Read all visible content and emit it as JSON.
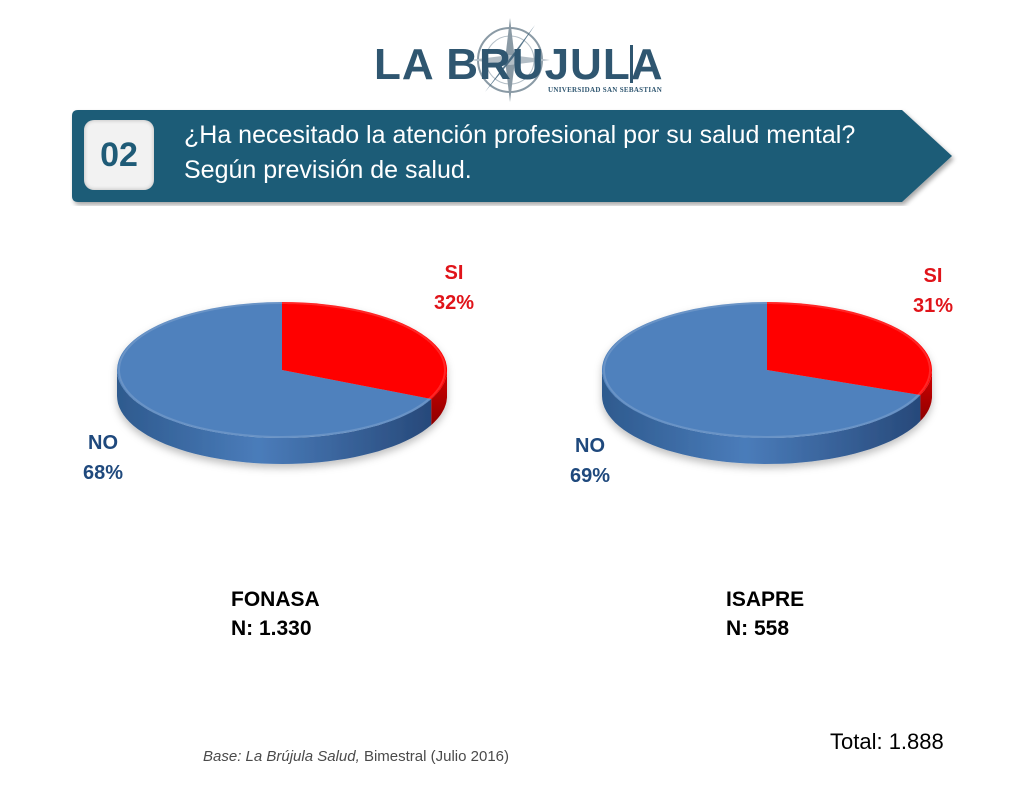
{
  "logo": {
    "name": "LA BRUJULA",
    "subtitle": "UNIVERSIDAD SAN SEBASTIAN"
  },
  "question": {
    "number": "02",
    "text": "¿Ha necesitado la atención profesional por su salud mental? Según previsión de salud."
  },
  "chart_data": [
    {
      "type": "pie",
      "title": "FONASA",
      "n_label": "N: 1.330",
      "categories": [
        "SI",
        "NO"
      ],
      "values": [
        32,
        68
      ],
      "value_labels": [
        "32%",
        "68%"
      ],
      "colors": [
        "#ff0000",
        "#4f81bd"
      ]
    },
    {
      "type": "pie",
      "title": "ISAPRE",
      "n_label": "N: 558",
      "categories": [
        "SI",
        "NO"
      ],
      "values": [
        31,
        69
      ],
      "value_labels": [
        "31%",
        "69%"
      ],
      "colors": [
        "#ff0000",
        "#4f81bd"
      ]
    }
  ],
  "footer": {
    "total": "Total:  1.888",
    "source_italic": "Base: La Brújula Salud,",
    "source_rest": " Bimestral (Julio 2016)"
  },
  "colors": {
    "banner": "#1f5b77",
    "si": "#ff0000",
    "no": "#4f81bd",
    "si_label": "#e0141a",
    "no_label": "#1f497d"
  }
}
